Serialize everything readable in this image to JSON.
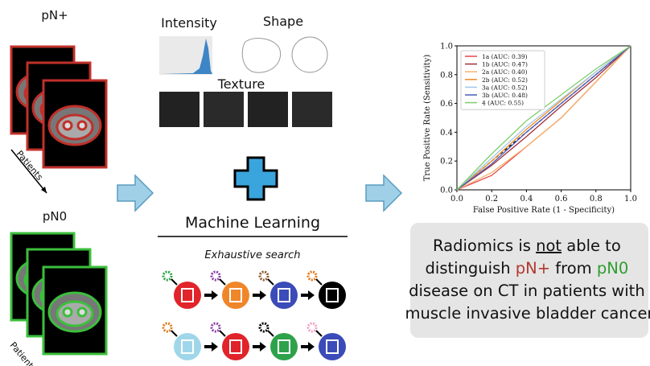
{
  "diagram": {
    "pn_plus_label": "pN+",
    "pn0_label": "pN0",
    "patients_label_1": "Patients",
    "patients_label_2": "Patients",
    "feature_intensity": "Intensity",
    "feature_shape": "Shape",
    "feature_texture": "Texture",
    "ml_title": "Machine Learning",
    "ml_subtitle": "Exhaustive search",
    "conclusion": [
      "Radiomics is ",
      "not",
      " able to",
      "distinguish ",
      "pN+",
      " from ",
      "pN0",
      "disease on CT in patients with",
      "muscle invasive bladder cancer"
    ]
  },
  "chart_data": {
    "type": "line",
    "xlabel": "False Positive Rate (1 - Specificity)",
    "ylabel": "True Positive Rate (Sensitivity)",
    "x": [
      0,
      0.2,
      0.4,
      0.6,
      0.8,
      1
    ],
    "xlim": [
      0,
      1
    ],
    "ylim": [
      0,
      1
    ],
    "xticks": [
      {
        "value": 0,
        "label": "0.0"
      },
      0.2,
      0.4,
      0.6,
      0.8,
      {
        "value": 1,
        "label": "1.0"
      }
    ],
    "yticks": [
      {
        "value": 0,
        "label": "0.0"
      },
      0.2,
      0.4,
      0.6,
      0.8,
      {
        "value": 1,
        "label": "1.0"
      }
    ],
    "legend": "upper left",
    "series": [
      {
        "name": "1a (AUC: 0.39)",
        "color": "#e8474c",
        "values": [
          0,
          0.1,
          0.3,
          0.5,
          0.75,
          1
        ]
      },
      {
        "name": "1b (AUC: 0.47)",
        "color": "#a0303a",
        "values": [
          0,
          0.17,
          0.37,
          0.58,
          0.78,
          1
        ]
      },
      {
        "name": "2a (AUC: 0.40)",
        "color": "#f5b36b",
        "values": [
          0,
          0.12,
          0.3,
          0.5,
          0.75,
          1
        ]
      },
      {
        "name": "2b (AUC: 0.52)",
        "color": "#f08a24",
        "values": [
          0,
          0.2,
          0.42,
          0.62,
          0.82,
          1
        ]
      },
      {
        "name": "3a (AUC: 0.52)",
        "color": "#9fc8e8",
        "values": [
          0,
          0.22,
          0.44,
          0.63,
          0.82,
          1
        ]
      },
      {
        "name": "3b (AUC: 0.48)",
        "color": "#4a5bb8",
        "values": [
          0,
          0.18,
          0.4,
          0.6,
          0.8,
          1
        ]
      },
      {
        "name": "4 (AUC: 0.55)",
        "color": "#7ccf6a",
        "values": [
          0,
          0.25,
          0.48,
          0.66,
          0.84,
          1
        ]
      }
    ]
  }
}
